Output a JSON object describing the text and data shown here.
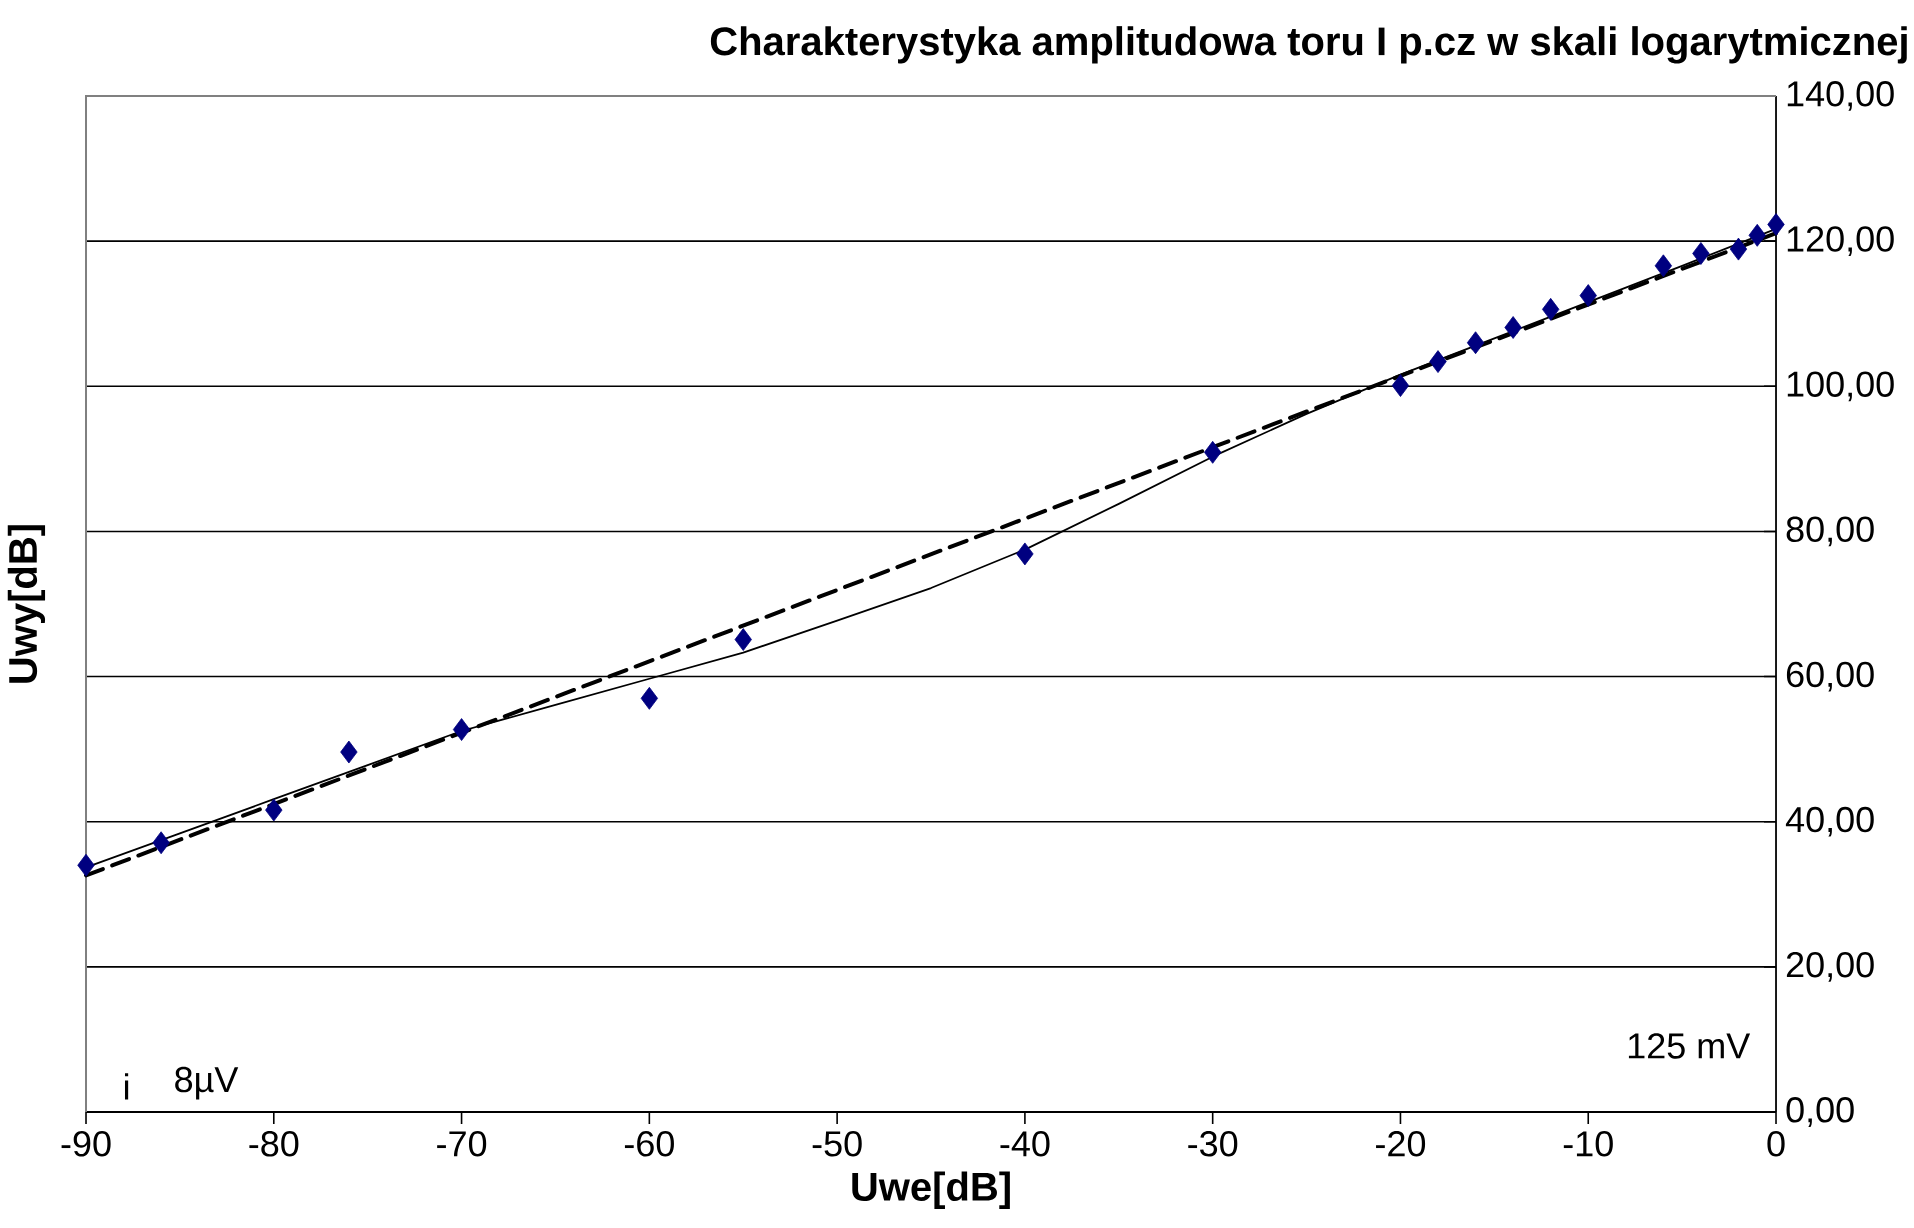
{
  "chart_data": {
    "type": "scatter",
    "title": "Charakterystyka amplitudowa toru I p.cz w skali logarytmicznej",
    "xlabel": "Uwe[dB]",
    "ylabel": "Uwy[dB]",
    "xlim": [
      -90,
      0
    ],
    "xticks": [
      -90,
      -80,
      -70,
      -60,
      -50,
      -40,
      -30,
      -20,
      -10,
      0
    ],
    "ylim": [
      0,
      140
    ],
    "yticks": [
      {
        "value": 0,
        "label": "0,00"
      },
      {
        "value": 20,
        "label": "20,00"
      },
      {
        "value": 40,
        "label": "40,00"
      },
      {
        "value": 60,
        "label": "60,00"
      },
      {
        "value": 80,
        "label": "80,00"
      },
      {
        "value": 100,
        "label": "100,00"
      },
      {
        "value": 120,
        "label": "120,00"
      },
      {
        "value": 140,
        "label": "140,00"
      }
    ],
    "grid": "y",
    "series": [
      {
        "color": "#000080",
        "marker": "diamond",
        "x": [
          -90,
          -86,
          -80,
          -76,
          -70,
          -60,
          -55,
          -40,
          -30,
          -20,
          -18,
          -16,
          -14,
          -12,
          -10,
          -6,
          -4,
          -2,
          -1,
          0
        ],
        "values": [
          34.0,
          37.1,
          41.6,
          49.6,
          52.7,
          57.0,
          65.1,
          76.9,
          90.9,
          100.1,
          103.4,
          106.0,
          108.1,
          110.6,
          112.5,
          116.6,
          118.3,
          118.9,
          120.8,
          122.3
        ]
      },
      {
        "type": "line",
        "color": "#000000",
        "marker": "none",
        "line_style": "solid",
        "x": [
          -90,
          -85,
          -80,
          -75,
          -70,
          -65,
          -60,
          -55,
          -50,
          -45,
          -40,
          -35,
          -30,
          -25,
          -20,
          -15,
          -10,
          -5,
          0
        ],
        "values": [
          33.7,
          38.4,
          43.1,
          47.8,
          52.5,
          56.1,
          59.7,
          63.3,
          67.7,
          72.2,
          77.5,
          83.8,
          90.3,
          96.2,
          101.6,
          106.6,
          111.6,
          116.6,
          121.7
        ]
      },
      {
        "type": "line",
        "color": "#000000",
        "marker": "none",
        "line_style": "dashed",
        "x": [
          -90,
          0
        ],
        "values": [
          32.6,
          121.1
        ]
      }
    ],
    "annotations": [
      "125 mV",
      "i",
      "8µV"
    ]
  }
}
